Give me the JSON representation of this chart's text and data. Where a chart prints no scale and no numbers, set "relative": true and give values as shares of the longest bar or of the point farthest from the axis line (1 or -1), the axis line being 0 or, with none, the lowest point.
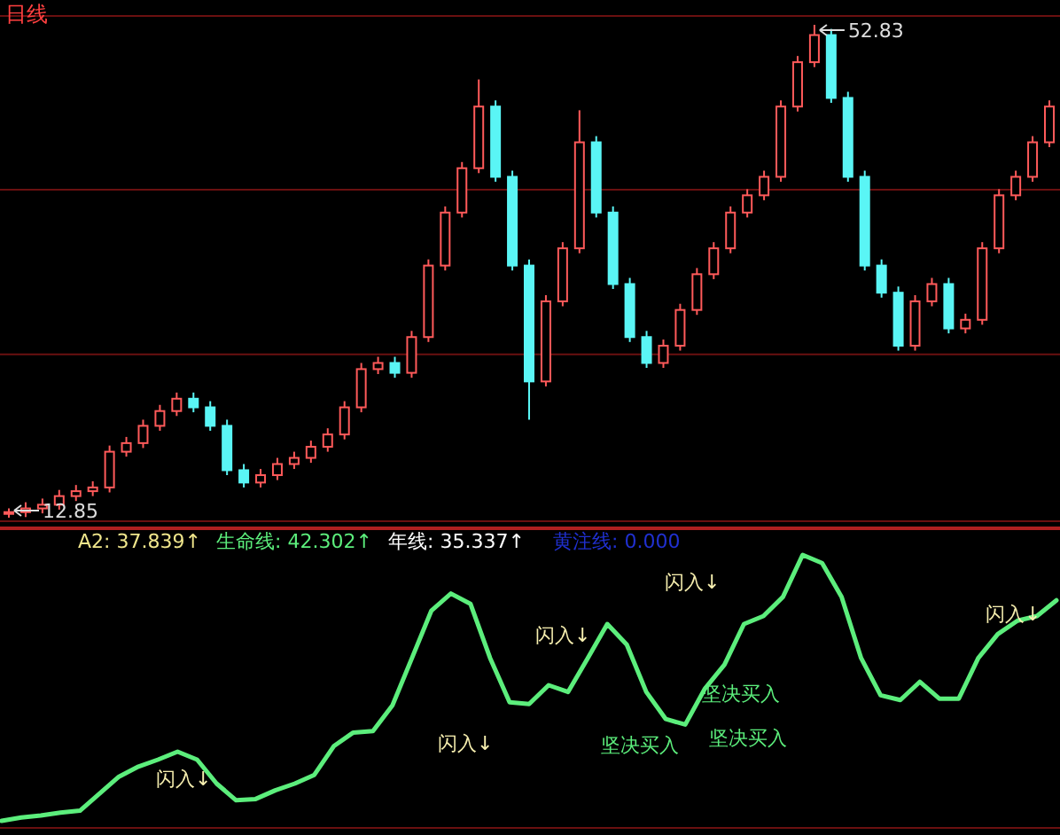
{
  "chart_data": [
    {
      "type": "candlestick",
      "title": "日线",
      "grid": "y",
      "yticks": [
        {
          "value": 26.1,
          "label": null
        },
        {
          "value": 39.45,
          "label": null
        }
      ],
      "categories": [
        null,
        null,
        null,
        null,
        null,
        null,
        null,
        null,
        null,
        null,
        null,
        null,
        null,
        null,
        null,
        null,
        null,
        null,
        null,
        null,
        null,
        null,
        null,
        null,
        null,
        null,
        null,
        null,
        null,
        null,
        null,
        null,
        null,
        null,
        null,
        null,
        null,
        null,
        null,
        null,
        null,
        null,
        null,
        null,
        null,
        null,
        null,
        null,
        null,
        null,
        null,
        null,
        null,
        null,
        null,
        null,
        null,
        null,
        null,
        null,
        null,
        null,
        null
      ],
      "ohlc": [
        [
          13.2,
          13.6,
          12.85,
          13.3
        ],
        [
          13.3,
          14.1,
          12.9,
          13.6
        ],
        [
          13.6,
          14.4,
          13.2,
          13.9
        ],
        [
          13.9,
          15.1,
          13.5,
          14.6
        ],
        [
          14.6,
          15.5,
          14.2,
          15.0
        ],
        [
          15.0,
          15.8,
          14.6,
          15.3
        ],
        [
          15.3,
          18.7,
          14.9,
          18.2
        ],
        [
          18.2,
          19.4,
          17.8,
          18.9
        ],
        [
          18.9,
          20.8,
          18.5,
          20.3
        ],
        [
          20.3,
          22.0,
          19.9,
          21.5
        ],
        [
          21.5,
          23.0,
          21.1,
          22.5
        ],
        [
          22.5,
          23.0,
          21.4,
          21.8
        ],
        [
          21.8,
          22.3,
          19.9,
          20.3
        ],
        [
          20.3,
          20.8,
          16.3,
          16.7
        ],
        [
          16.7,
          17.2,
          15.3,
          15.7
        ],
        [
          15.7,
          16.8,
          15.3,
          16.3
        ],
        [
          16.3,
          17.7,
          15.9,
          17.2
        ],
        [
          17.2,
          18.2,
          16.8,
          17.7
        ],
        [
          17.7,
          19.1,
          17.3,
          18.6
        ],
        [
          18.6,
          20.1,
          18.2,
          19.6
        ],
        [
          19.6,
          22.3,
          19.2,
          21.8
        ],
        [
          21.8,
          25.4,
          21.4,
          24.9
        ],
        [
          24.9,
          25.9,
          24.5,
          25.4
        ],
        [
          25.4,
          25.9,
          24.2,
          24.6
        ],
        [
          24.6,
          28.0,
          24.2,
          27.5
        ],
        [
          27.5,
          33.8,
          27.1,
          33.3
        ],
        [
          33.3,
          38.1,
          32.9,
          37.6
        ],
        [
          37.6,
          41.7,
          37.2,
          41.2
        ],
        [
          41.2,
          48.4,
          40.8,
          46.2
        ],
        [
          46.2,
          46.7,
          40.1,
          40.5
        ],
        [
          40.5,
          41.0,
          32.9,
          33.3
        ],
        [
          33.3,
          33.8,
          20.8,
          23.9
        ],
        [
          23.9,
          30.9,
          23.5,
          30.4
        ],
        [
          30.4,
          35.2,
          30.0,
          34.7
        ],
        [
          34.7,
          45.9,
          34.3,
          43.3
        ],
        [
          43.3,
          43.8,
          37.2,
          37.6
        ],
        [
          37.6,
          38.1,
          31.4,
          31.8
        ],
        [
          31.8,
          32.3,
          27.1,
          27.5
        ],
        [
          27.5,
          28.0,
          25.0,
          25.4
        ],
        [
          25.4,
          27.3,
          25.0,
          26.8
        ],
        [
          26.8,
          30.2,
          26.4,
          29.7
        ],
        [
          29.7,
          33.1,
          29.3,
          32.6
        ],
        [
          32.6,
          35.2,
          32.2,
          34.7
        ],
        [
          34.7,
          38.1,
          34.3,
          37.6
        ],
        [
          37.6,
          39.5,
          37.2,
          39.0
        ],
        [
          39.0,
          41.0,
          38.6,
          40.5
        ],
        [
          40.5,
          46.7,
          40.1,
          46.2
        ],
        [
          46.2,
          50.3,
          45.8,
          49.8
        ],
        [
          49.8,
          52.83,
          49.4,
          52.0
        ],
        [
          52.0,
          52.5,
          46.5,
          46.9
        ],
        [
          46.9,
          47.4,
          40.1,
          40.5
        ],
        [
          40.5,
          41.0,
          32.9,
          33.3
        ],
        [
          33.3,
          33.8,
          30.7,
          31.1
        ],
        [
          31.1,
          31.6,
          26.4,
          26.8
        ],
        [
          26.8,
          30.9,
          26.4,
          30.4
        ],
        [
          30.4,
          32.3,
          30.0,
          31.8
        ],
        [
          31.8,
          32.3,
          27.8,
          28.2
        ],
        [
          28.2,
          29.4,
          27.8,
          28.9
        ],
        [
          28.9,
          35.2,
          28.5,
          34.7
        ],
        [
          34.7,
          39.5,
          34.3,
          39.0
        ],
        [
          39.0,
          41.0,
          38.6,
          40.5
        ],
        [
          40.5,
          43.8,
          40.1,
          43.3
        ],
        [
          43.3,
          46.7,
          42.9,
          46.2
        ]
      ],
      "annotations": [
        "52.83",
        "12.85"
      ]
    },
    {
      "type": "line",
      "relative": true,
      "color": "#5cee7c",
      "categories": [
        null,
        null,
        null,
        null,
        null,
        null,
        null,
        null,
        null,
        null,
        null,
        null,
        null,
        null,
        null,
        null,
        null,
        null,
        null,
        null,
        null,
        null,
        null,
        null,
        null,
        null,
        null,
        null,
        null,
        null,
        null,
        null,
        null,
        null,
        null,
        null,
        null,
        null,
        null,
        null,
        null,
        null,
        null,
        null,
        null,
        null,
        null,
        null,
        null,
        null,
        null,
        null,
        null,
        null,
        null
      ],
      "values": [
        0,
        0.013,
        0.02,
        0.031,
        0.038,
        0.102,
        0.166,
        0.204,
        0.23,
        0.26,
        0.23,
        0.14,
        0.077,
        0.082,
        0.115,
        0.14,
        0.173,
        0.281,
        0.332,
        0.337,
        0.434,
        0.612,
        0.791,
        0.855,
        0.816,
        0.612,
        0.446,
        0.439,
        0.51,
        0.485,
        0.612,
        0.74,
        0.663,
        0.485,
        0.383,
        0.362,
        0.497,
        0.587,
        0.74,
        0.77,
        0.842,
        1,
        0.969,
        0.842,
        0.612,
        0.472,
        0.454,
        0.523,
        0.459,
        0.459,
        0.612,
        0.702,
        0.753,
        0.77,
        0.829
      ],
      "annotations": [
        "A2: 37.839↑",
        "生命线: 42.302↑",
        "年线: 35.337↑",
        "黄注线: 0.000",
        "闪入↓",
        "闪入↓",
        "闪入↓",
        "闪入↓",
        "闪入↓",
        "坚决买入",
        "坚决买入",
        "坚决买入"
      ]
    }
  ]
}
